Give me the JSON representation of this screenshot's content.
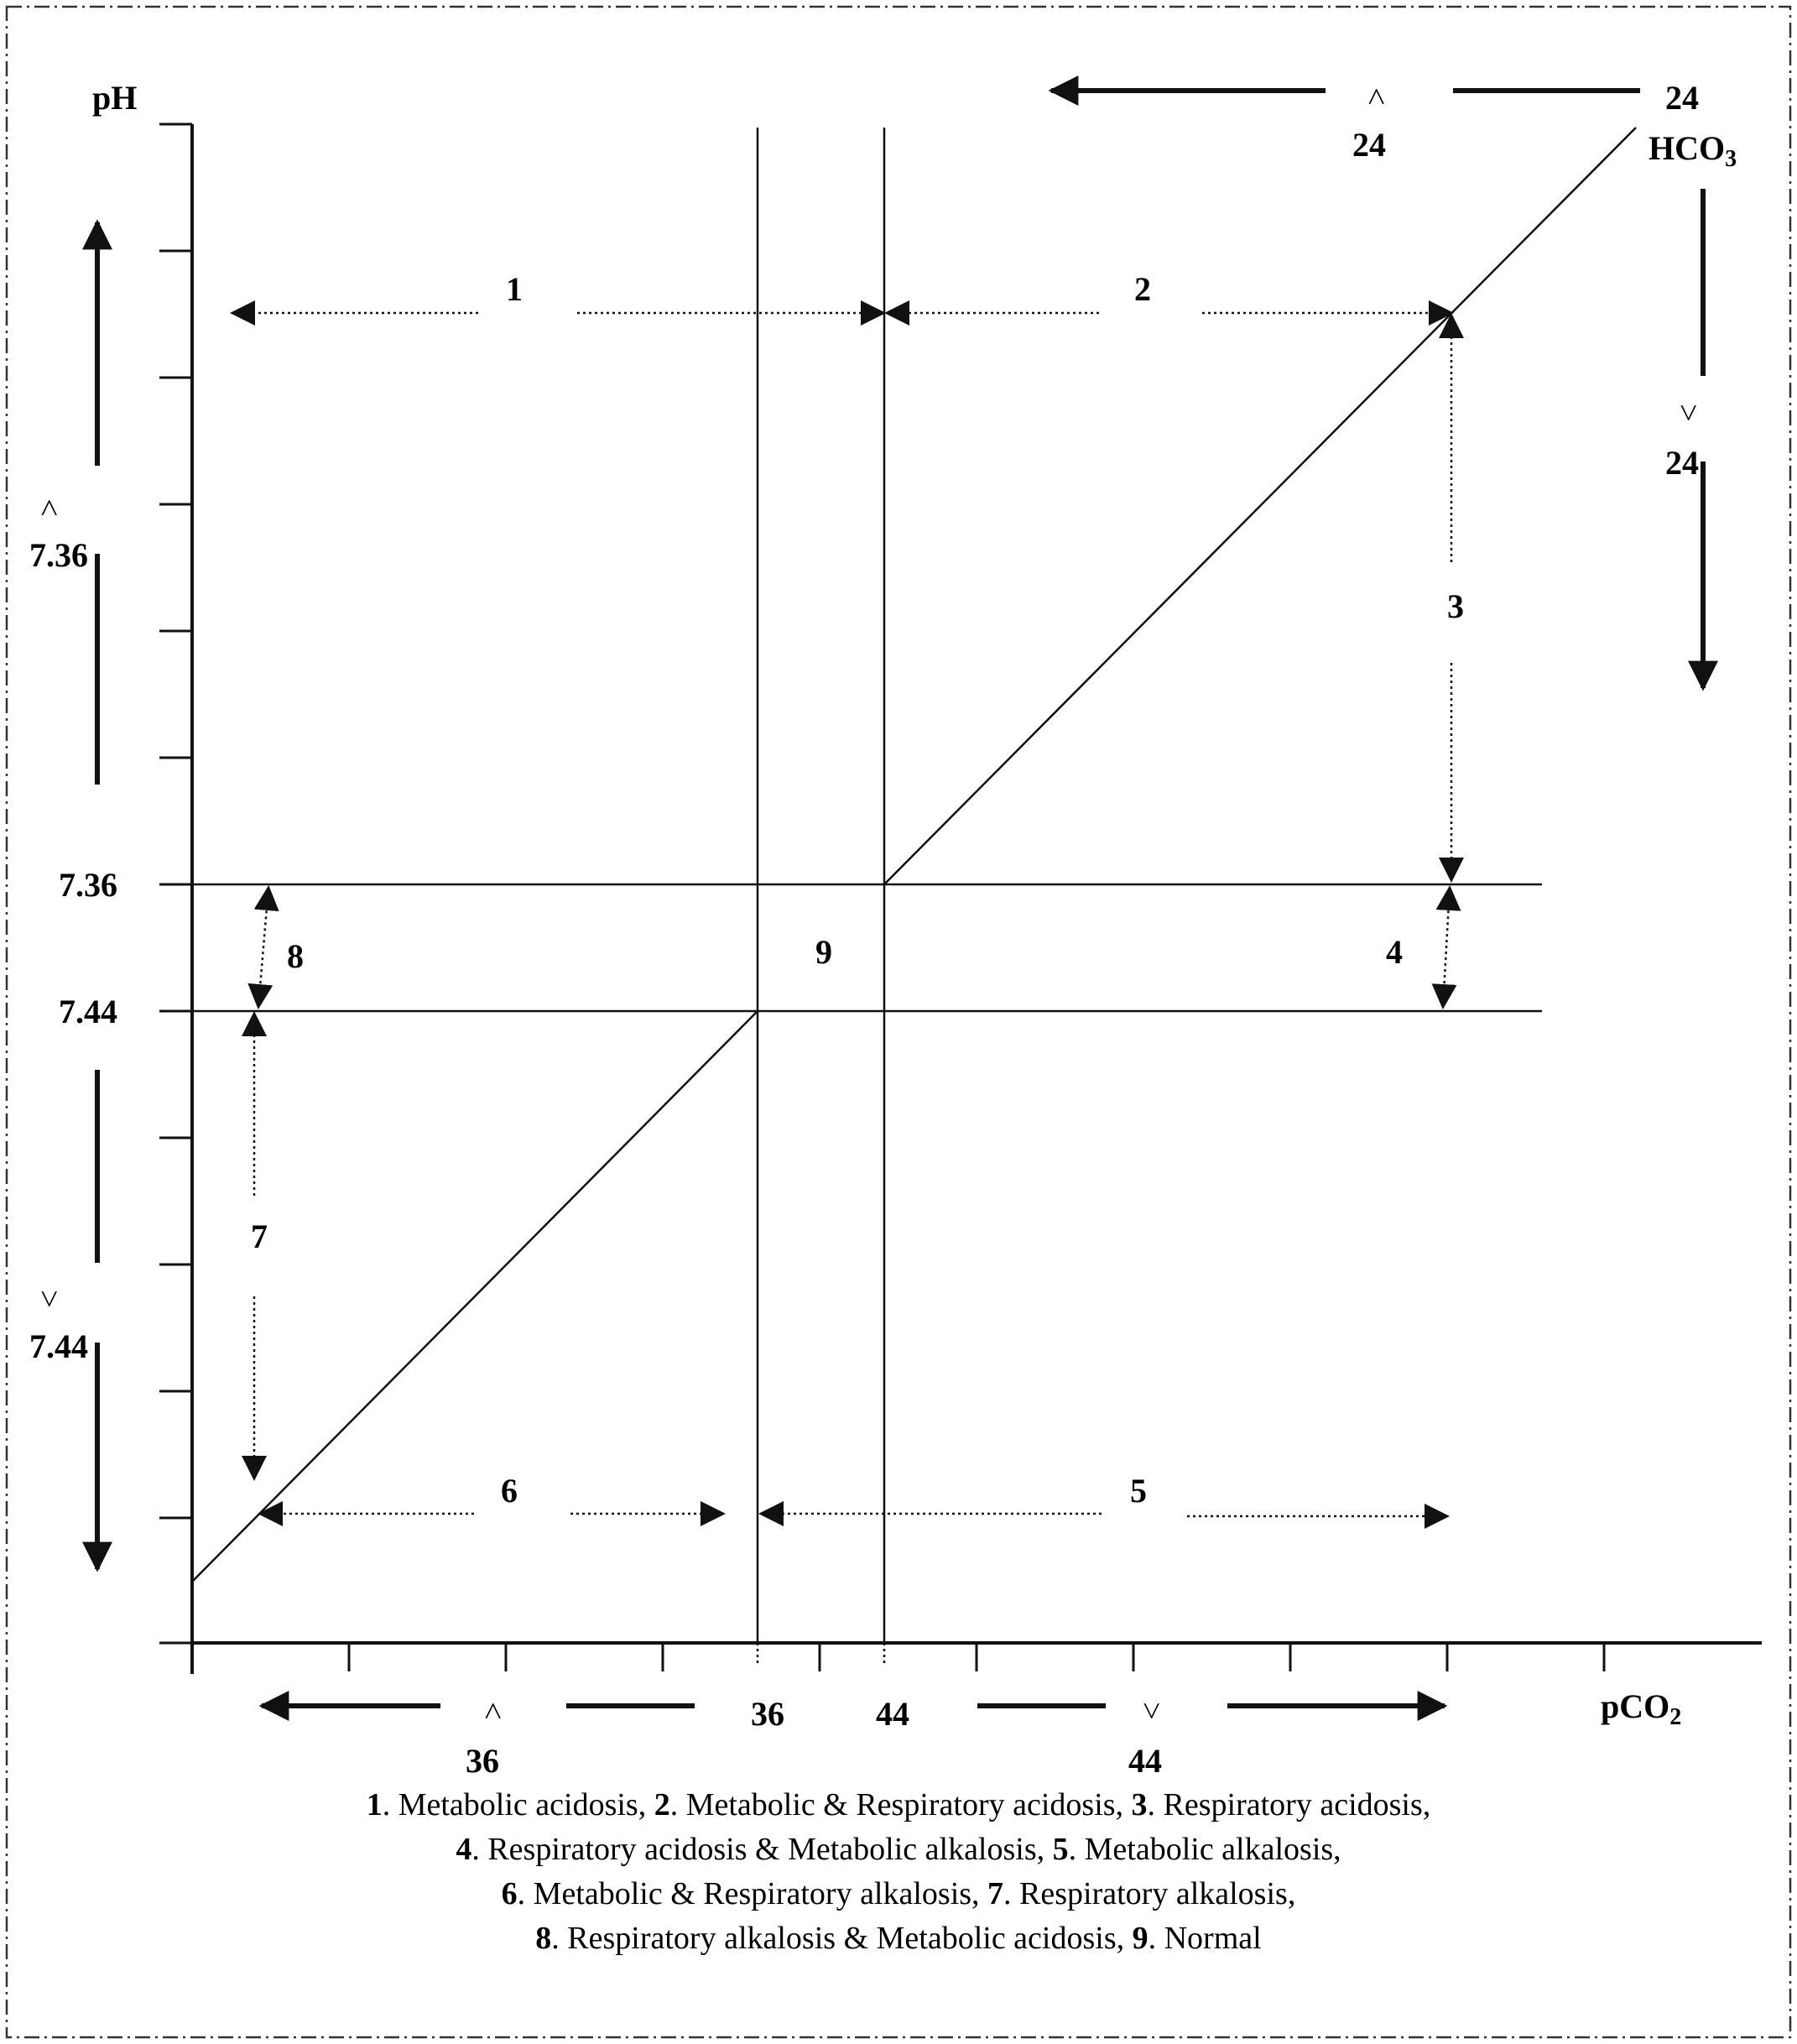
{
  "axes": {
    "y_label": "pH",
    "x_label": "pCO",
    "x_label_sub": "2",
    "hco3_label": "HCO",
    "hco3_sub": "3",
    "hco3_value": "24"
  },
  "levels": {
    "ph_low": "7.36",
    "ph_high": "7.44",
    "pco2_low": "36",
    "pco2_high": "44"
  },
  "directional_labels": {
    "ph_acid": {
      "sign": "<",
      "value": "7.36"
    },
    "ph_alk": {
      "sign": ">",
      "value": "7.44"
    },
    "pco2_low": {
      "sign": "<",
      "value": "36"
    },
    "pco2_high": {
      "sign": ">",
      "value": "44"
    },
    "hco3_low": {
      "sign": "<",
      "value": "24"
    },
    "hco3_high": {
      "sign": ">",
      "value": "24"
    }
  },
  "region_numbers": [
    "1",
    "2",
    "3",
    "4",
    "5",
    "6",
    "7",
    "8",
    "9"
  ],
  "legend": {
    "lines": [
      [
        {
          "num": "1",
          "text": ". Metabolic acidosis, "
        },
        {
          "num": "2",
          "text": ". Metabolic & Respiratory acidosis, "
        },
        {
          "num": "3",
          "text": ". Respiratory acidosis,"
        }
      ],
      [
        {
          "num": "4",
          "text": ".  Respiratory acidosis & Metabolic alkalosis, "
        },
        {
          "num": "5",
          "text": ". Metabolic alkalosis,"
        }
      ],
      [
        {
          "num": "6",
          "text": ". Metabolic & Respiratory alkalosis, "
        },
        {
          "num": "7",
          "text": ". Respiratory alkalosis,"
        }
      ],
      [
        {
          "num": "8",
          "text": ". Respiratory alkalosis & Metabolic acidosis, "
        },
        {
          "num": "9",
          "text": ". Normal"
        }
      ]
    ]
  },
  "colors": {
    "line": "#111111",
    "border": "#333333",
    "background": "#ffffff"
  }
}
